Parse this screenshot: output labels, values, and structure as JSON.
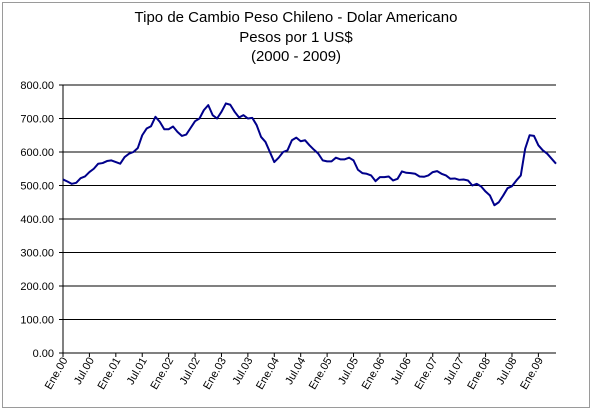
{
  "chart_data": {
    "type": "line",
    "title": "Tipo de Cambio Peso Chileno - Dolar Americano",
    "subtitle": "Pesos por 1  US$",
    "subtitle2": "(2000 - 2009)",
    "xlabel": "",
    "ylabel": "",
    "ylim": [
      0,
      800
    ],
    "grid": true,
    "legend": "none",
    "y_ticks": [
      "0.00",
      "100.00",
      "200.00",
      "300.00",
      "400.00",
      "500.00",
      "600.00",
      "700.00",
      "800.00"
    ],
    "x_ticks": [
      "Ene.00",
      "Jul.00",
      "Ene.01",
      "Jul.01",
      "Ene.02",
      "Jul.02",
      "Ene.03",
      "Jul.03",
      "Ene.04",
      "Jul.04",
      "Ene.05",
      "Jul.05",
      "Ene.06",
      "Jul.06",
      "Ene.07",
      "Jul.07",
      "Ene.08",
      "Jul.08",
      "Ene.09"
    ],
    "series": [
      {
        "color": "#00008B",
        "values": [
          518,
          512,
          505,
          508,
          522,
          527,
          540,
          550,
          565,
          567,
          573,
          575,
          570,
          565,
          585,
          595,
          600,
          612,
          650,
          670,
          677,
          705,
          690,
          668,
          668,
          676,
          660,
          648,
          652,
          672,
          692,
          700,
          725,
          740,
          710,
          700,
          720,
          745,
          741,
          720,
          703,
          710,
          700,
          702,
          680,
          645,
          630,
          600,
          570,
          583,
          600,
          605,
          635,
          643,
          632,
          635,
          620,
          607,
          595,
          575,
          572,
          572,
          583,
          578,
          578,
          583,
          575,
          547,
          537,
          535,
          530,
          513,
          525,
          525,
          527,
          515,
          520,
          542,
          538,
          537,
          535,
          527,
          526,
          530,
          540,
          543,
          535,
          530,
          520,
          521,
          517,
          518,
          515,
          500,
          505,
          497,
          482,
          470,
          441,
          450,
          470,
          492,
          498,
          515,
          530,
          610,
          650,
          648,
          620,
          605,
          595,
          580,
          565
        ]
      }
    ]
  }
}
